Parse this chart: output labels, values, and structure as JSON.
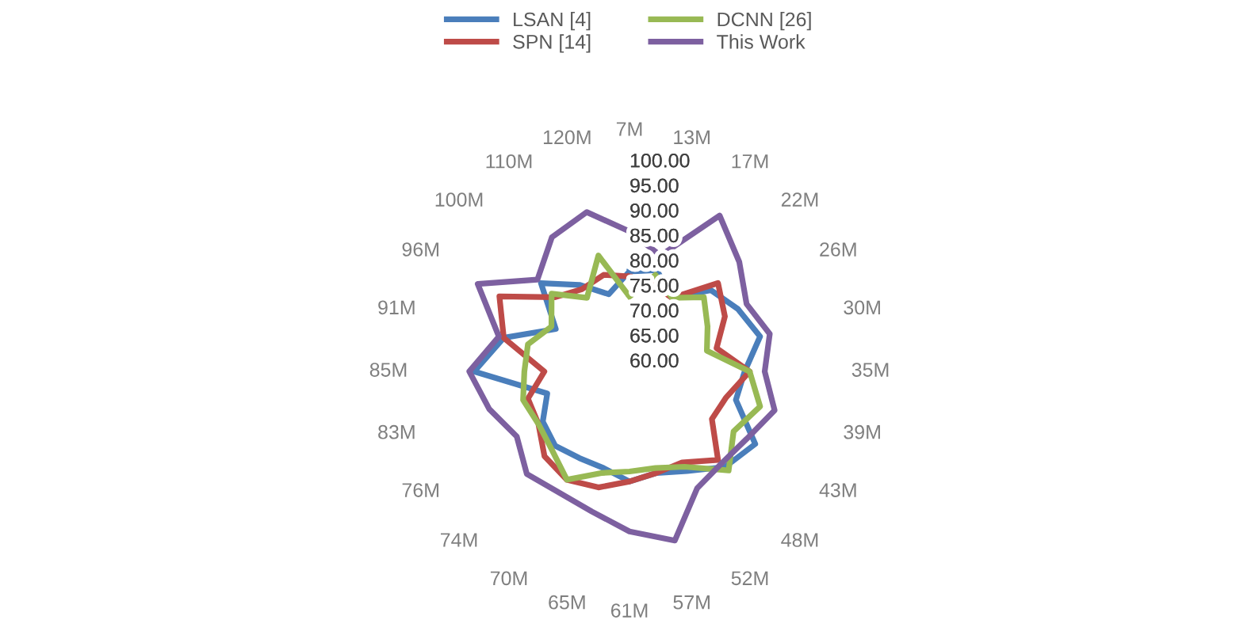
{
  "chart_data": {
    "type": "radar",
    "categories": [
      "7M",
      "13M",
      "17M",
      "22M",
      "26M",
      "30M",
      "35M",
      "39M",
      "43M",
      "48M",
      "52M",
      "57M",
      "61M",
      "65M",
      "70M",
      "74M",
      "76M",
      "83M",
      "85M",
      "91M",
      "96M",
      "100M",
      "110M",
      "120M"
    ],
    "series": [
      {
        "name": "LSAN [4]",
        "color": "#4a7ebb",
        "values": [
          80,
          81,
          77,
          83,
          85,
          87,
          83,
          82,
          89,
          87,
          83,
          81,
          82,
          80,
          80,
          81,
          80,
          77,
          91,
          86,
          77,
          85,
          80,
          76
        ]
      },
      {
        "name": "SPN [14]",
        "color": "#be4b48",
        "values": [
          79,
          78,
          77,
          85,
          82,
          78,
          84,
          80,
          79,
          85,
          81,
          81,
          82,
          84,
          85,
          84,
          81,
          81,
          77,
          86,
          90,
          81,
          79,
          80
        ]
      },
      {
        "name": "DCNN [26]",
        "color": "#98b954",
        "values": [
          75,
          80,
          77,
          81,
          78,
          76,
          84,
          87,
          84,
          88,
          82,
          80,
          80,
          81,
          85,
          82,
          81,
          82,
          81,
          81,
          78,
          82,
          77,
          84
        ]
      },
      {
        "name": "This Work",
        "color": "#7d60a0",
        "values": [
          88,
          84,
          96,
          91,
          87,
          89,
          87,
          90,
          87,
          86,
          87,
          95,
          92,
          89,
          88,
          89,
          86,
          89,
          92,
          87,
          95,
          86,
          91,
          93
        ]
      }
    ],
    "ylim": [
      60,
      100
    ],
    "yticks": [
      {
        "value": 60,
        "label": "60.00"
      },
      {
        "value": 65,
        "label": "65.00"
      },
      {
        "value": 70,
        "label": "70.00"
      },
      {
        "value": 75,
        "label": "75.00"
      },
      {
        "value": 80,
        "label": "80.00"
      },
      {
        "value": 85,
        "label": "85.00"
      },
      {
        "value": 90,
        "label": "90.00"
      },
      {
        "value": 95,
        "label": "95.00"
      },
      {
        "value": 100,
        "label": "100.00"
      }
    ],
    "grid": false,
    "legend": "top",
    "marker": "none",
    "line_style": "solid"
  }
}
